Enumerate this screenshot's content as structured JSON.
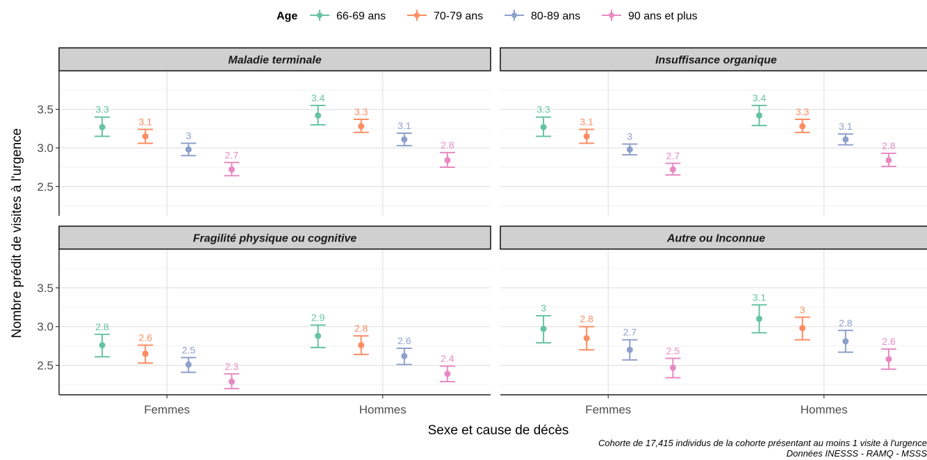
{
  "chart_data": {
    "type": "scatter",
    "subtype": "point-with-errorbars, faceted 2x2",
    "legend": {
      "title": "Age",
      "position": "top",
      "entries": [
        {
          "name": "66-69 ans",
          "color": "#66c2a5"
        },
        {
          "name": "70-79 ans",
          "color": "#fc8d62"
        },
        {
          "name": "80-89 ans",
          "color": "#8da0cb"
        },
        {
          "name": "90 ans et plus",
          "color": "#e78ac3"
        }
      ]
    },
    "xlabel": "Sexe et cause de décès",
    "ylabel": "Nombre prédit de visites à l'urgence",
    "categories": [
      "Femmes",
      "Hommes"
    ],
    "y_ticks": [
      "2.5",
      "3.0",
      "3.5"
    ],
    "ylim": [
      2.12,
      4.0
    ],
    "grid": true,
    "caption": [
      "Cohorte de 17,415 individus de la cohorte présentant au moins 1 visite à l'urgence",
      "Données INESSS - RAMQ - MSSS"
    ],
    "panels": [
      {
        "title": "Maladie terminale",
        "groups": {
          "Femmes": [
            {
              "value": 3.27,
              "low": 3.15,
              "high": 3.4,
              "label": "3.3"
            },
            {
              "value": 3.15,
              "low": 3.06,
              "high": 3.24,
              "label": "3.1"
            },
            {
              "value": 2.98,
              "low": 2.9,
              "high": 3.06,
              "label": "3"
            },
            {
              "value": 2.72,
              "low": 2.64,
              "high": 2.81,
              "label": "2.7"
            }
          ],
          "Hommes": [
            {
              "value": 3.42,
              "low": 3.3,
              "high": 3.55,
              "label": "3.4"
            },
            {
              "value": 3.28,
              "low": 3.2,
              "high": 3.37,
              "label": "3.3"
            },
            {
              "value": 3.11,
              "low": 3.03,
              "high": 3.19,
              "label": "3.1"
            },
            {
              "value": 2.84,
              "low": 2.75,
              "high": 2.94,
              "label": "2.8"
            }
          ]
        }
      },
      {
        "title": "Insuffisance organique",
        "groups": {
          "Femmes": [
            {
              "value": 3.27,
              "low": 3.15,
              "high": 3.4,
              "label": "3.3"
            },
            {
              "value": 3.15,
              "low": 3.06,
              "high": 3.24,
              "label": "3.1"
            },
            {
              "value": 2.98,
              "low": 2.91,
              "high": 3.05,
              "label": "3"
            },
            {
              "value": 2.72,
              "low": 2.65,
              "high": 2.8,
              "label": "2.7"
            }
          ],
          "Hommes": [
            {
              "value": 3.42,
              "low": 3.29,
              "high": 3.55,
              "label": "3.4"
            },
            {
              "value": 3.28,
              "low": 3.2,
              "high": 3.37,
              "label": "3.3"
            },
            {
              "value": 3.11,
              "low": 3.04,
              "high": 3.18,
              "label": "3.1"
            },
            {
              "value": 2.84,
              "low": 2.76,
              "high": 2.93,
              "label": "2.8"
            }
          ]
        }
      },
      {
        "title": "Fragilité physique ou cognitive",
        "groups": {
          "Femmes": [
            {
              "value": 2.76,
              "low": 2.61,
              "high": 2.9,
              "label": "2.8"
            },
            {
              "value": 2.65,
              "low": 2.53,
              "high": 2.76,
              "label": "2.6"
            },
            {
              "value": 2.51,
              "low": 2.41,
              "high": 2.6,
              "label": "2.5"
            },
            {
              "value": 2.29,
              "low": 2.2,
              "high": 2.39,
              "label": "2.3"
            }
          ],
          "Hommes": [
            {
              "value": 2.88,
              "low": 2.73,
              "high": 3.02,
              "label": "2.9"
            },
            {
              "value": 2.76,
              "low": 2.64,
              "high": 2.88,
              "label": "2.8"
            },
            {
              "value": 2.62,
              "low": 2.51,
              "high": 2.72,
              "label": "2.6"
            },
            {
              "value": 2.39,
              "low": 2.29,
              "high": 2.49,
              "label": "2.4"
            }
          ]
        }
      },
      {
        "title": "Autre ou Inconnue",
        "groups": {
          "Femmes": [
            {
              "value": 2.97,
              "low": 2.79,
              "high": 3.14,
              "label": "3"
            },
            {
              "value": 2.85,
              "low": 2.7,
              "high": 3.0,
              "label": "2.8"
            },
            {
              "value": 2.7,
              "low": 2.57,
              "high": 2.83,
              "label": "2.7"
            },
            {
              "value": 2.47,
              "low": 2.34,
              "high": 2.59,
              "label": "2.5"
            }
          ],
          "Hommes": [
            {
              "value": 3.1,
              "low": 2.92,
              "high": 3.28,
              "label": "3.1"
            },
            {
              "value": 2.98,
              "low": 2.83,
              "high": 3.12,
              "label": "3"
            },
            {
              "value": 2.81,
              "low": 2.67,
              "high": 2.95,
              "label": "2.8"
            },
            {
              "value": 2.58,
              "low": 2.45,
              "high": 2.71,
              "label": "2.6"
            }
          ]
        }
      }
    ]
  }
}
